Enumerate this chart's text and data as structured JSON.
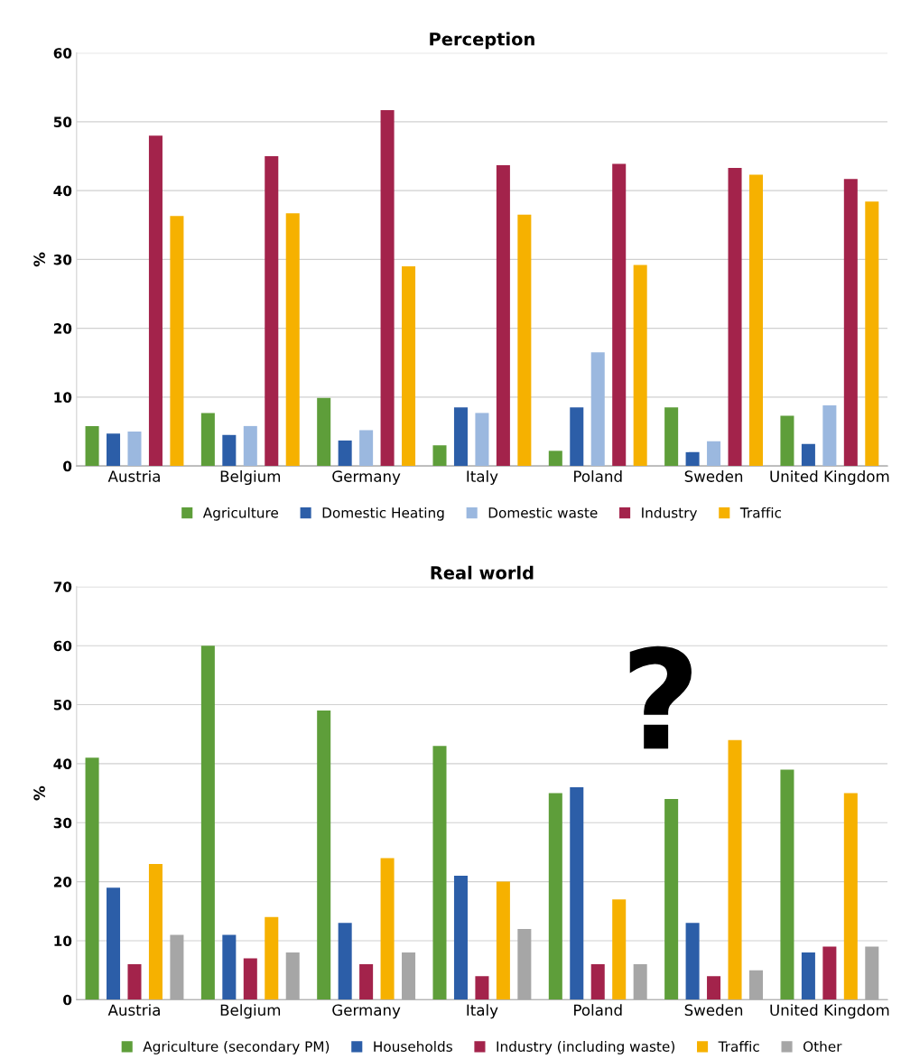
{
  "chart_data": [
    {
      "type": "bar",
      "title": "Perception",
      "ylabel": "%",
      "categories": [
        "Austria",
        "Belgium",
        "Germany",
        "Italy",
        "Poland",
        "Sweden",
        "United Kingdom"
      ],
      "ylim": [
        0,
        60
      ],
      "yticks": [
        0,
        10,
        20,
        30,
        40,
        50,
        60
      ],
      "grid": "y",
      "legend": "bottom",
      "series": [
        {
          "name": "Agriculture",
          "color": "#5e9e3a",
          "values": [
            5.8,
            7.7,
            9.9,
            3.0,
            2.2,
            8.5,
            7.3
          ]
        },
        {
          "name": "Domestic Heating",
          "color": "#2c5ea8",
          "values": [
            4.7,
            4.5,
            3.7,
            8.5,
            8.5,
            2.0,
            3.2
          ]
        },
        {
          "name": "Domestic waste",
          "color": "#9bb8df",
          "values": [
            5.0,
            5.8,
            5.2,
            7.7,
            16.5,
            3.6,
            8.8
          ]
        },
        {
          "name": "Industry",
          "color": "#a3234b",
          "values": [
            48,
            45,
            51.7,
            43.7,
            43.9,
            43.3,
            41.7
          ]
        },
        {
          "name": "Traffic",
          "color": "#f6b100",
          "values": [
            36.3,
            36.7,
            29,
            36.5,
            29.2,
            42.3,
            38.4
          ]
        }
      ]
    },
    {
      "type": "bar",
      "title": "Real world",
      "ylabel": "%",
      "categories": [
        "Austria",
        "Belgium",
        "Germany",
        "Italy",
        "Poland",
        "Sweden",
        "United Kingdom"
      ],
      "ylim": [
        0,
        70
      ],
      "yticks": [
        0,
        10,
        20,
        30,
        40,
        50,
        60,
        70
      ],
      "grid": "y",
      "legend": "bottom",
      "annotations": [
        "?"
      ],
      "series": [
        {
          "name": "Agriculture (secondary PM)",
          "color": "#5e9e3a",
          "values": [
            41,
            60,
            49,
            43,
            35,
            34,
            39
          ]
        },
        {
          "name": "Households",
          "color": "#2c5ea8",
          "values": [
            19,
            11,
            13,
            21,
            36,
            13,
            8
          ]
        },
        {
          "name": "Industry (including waste)",
          "color": "#a3234b",
          "values": [
            6,
            7,
            6,
            4,
            6,
            4,
            9
          ]
        },
        {
          "name": "Traffic",
          "color": "#f6b100",
          "values": [
            23,
            14,
            24,
            20,
            17,
            44,
            35
          ]
        },
        {
          "name": "Other",
          "color": "#a6a6a6",
          "values": [
            11,
            8,
            8,
            12,
            6,
            5,
            9
          ]
        }
      ]
    }
  ]
}
